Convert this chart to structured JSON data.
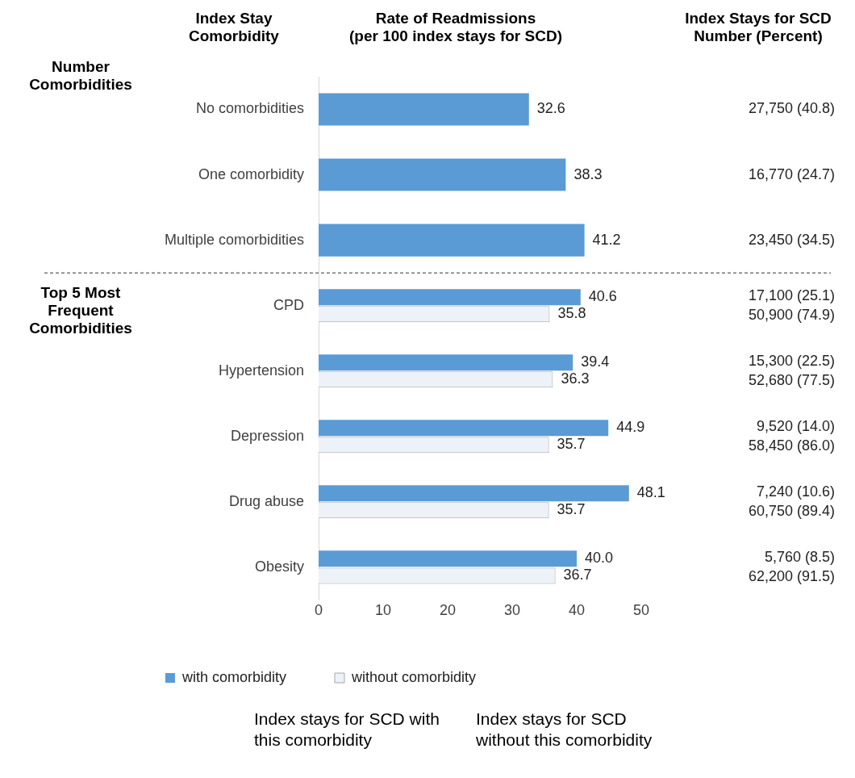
{
  "chart_data": {
    "type": "bar",
    "orientation": "horizontal",
    "title": "Rate of Readmissions\n(per 100 index stays for SCD)",
    "ylabel": "Index Stay\nComorbidity",
    "categories": [
      "No comorbidities",
      "One comorbidity",
      "Multiple comorbidities",
      "CPD",
      "Hypertension",
      "Depression",
      "Drug abuse",
      "Obesity"
    ],
    "series": [
      {
        "name": "with comorbidity",
        "color": "#5b9bd5",
        "values": [
          32.6,
          38.3,
          41.2,
          40.6,
          39.4,
          44.9,
          48.1,
          40.0
        ],
        "value_labels": [
          "32.6",
          "38.3",
          "41.2",
          "40.6",
          "39.4",
          "44.9",
          "48.1",
          "40.0"
        ]
      },
      {
        "name": "without comorbidity",
        "color": "#edf2f9",
        "values": [
          null,
          null,
          null,
          35.8,
          36.3,
          35.7,
          35.7,
          36.7
        ],
        "value_labels": [
          null,
          null,
          null,
          "35.8",
          "36.3",
          "35.7",
          "35.7",
          "36.7"
        ]
      }
    ],
    "xlim": [
      0,
      50
    ],
    "xticks": [
      0,
      10,
      20,
      30,
      40,
      50
    ],
    "legend": "bottom",
    "annotations": [
      "Index Stays for SCD\nNumber (Percent)",
      "Number\nComorbidities",
      "Top 5 Most\nFrequent\nComorbidities",
      "27,750 (40.8)",
      "16,770 (24.7)",
      "23,450 (34.5)",
      "17,100 (25.1)",
      "50,900 (74.9)",
      "15,300 (22.5)",
      "52,680 (77.5)",
      "9,520 (14.0)",
      "58,450 (86.0)",
      "7,240 (10.6)",
      "60,750 (89.4)",
      "5,760 (8.5)",
      "62,200 (91.5)",
      "Index stays for SCD with this comorbidity",
      "Index stays for SCD without this comorbidity"
    ]
  }
}
